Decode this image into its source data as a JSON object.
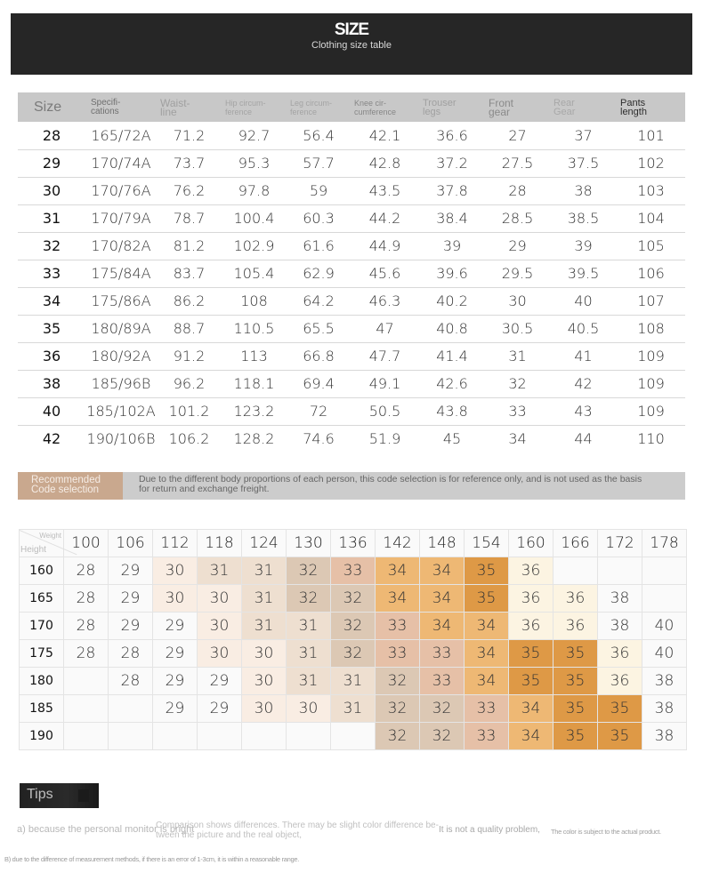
{
  "banner": {
    "title": "SIZE",
    "subtitle": "Clothing size table"
  },
  "size_table": {
    "headers": [
      {
        "line1": "Size",
        "line2": ""
      },
      {
        "line1": "Specifi-",
        "line2": "cations"
      },
      {
        "line1": "Waist-",
        "line2": "line"
      },
      {
        "line1": "Hip circum-",
        "line2": "ference"
      },
      {
        "line1": "Leg circum-",
        "line2": "ference"
      },
      {
        "line1": "Knee cir-",
        "line2": "cumference"
      },
      {
        "line1": "Trouser",
        "line2": "legs"
      },
      {
        "line1": "Front",
        "line2": "gear"
      },
      {
        "line1": "Rear",
        "line2": "Gear"
      },
      {
        "line1": "Pants",
        "line2": "length"
      }
    ],
    "rows": [
      [
        "28",
        "165/72A",
        "71.2",
        "92.7",
        "56.4",
        "42.1",
        "36.6",
        "27",
        "37",
        "101"
      ],
      [
        "29",
        "170/74A",
        "73.7",
        "95.3",
        "57.7",
        "42.8",
        "37.2",
        "27.5",
        "37.5",
        "102"
      ],
      [
        "30",
        "170/76A",
        "76.2",
        "97.8",
        "59",
        "43.5",
        "37.8",
        "28",
        "38",
        "103"
      ],
      [
        "31",
        "170/79A",
        "78.7",
        "100.4",
        "60.3",
        "44.2",
        "38.4",
        "28.5",
        "38.5",
        "104"
      ],
      [
        "32",
        "170/82A",
        "81.2",
        "102.9",
        "61.6",
        "44.9",
        "39",
        "29",
        "39",
        "105"
      ],
      [
        "33",
        "175/84A",
        "83.7",
        "105.4",
        "62.9",
        "45.6",
        "39.6",
        "29.5",
        "39.5",
        "106"
      ],
      [
        "34",
        "175/86A",
        "86.2",
        "108",
        "64.2",
        "46.3",
        "40.2",
        "30",
        "40",
        "107"
      ],
      [
        "35",
        "180/89A",
        "88.7",
        "110.5",
        "65.5",
        "47",
        "40.8",
        "30.5",
        "40.5",
        "108"
      ],
      [
        "36",
        "180/92A",
        "91.2",
        "113",
        "66.8",
        "47.7",
        "41.4",
        "31",
        "41",
        "109"
      ],
      [
        "38",
        "185/96B",
        "96.2",
        "118.1",
        "69.4",
        "49.1",
        "42.6",
        "32",
        "42",
        "109"
      ],
      [
        "40",
        "185/102A",
        "101.2",
        "123.2",
        "72",
        "50.5",
        "43.8",
        "33",
        "43",
        "109"
      ],
      [
        "42",
        "190/106B",
        "106.2",
        "128.2",
        "74.6",
        "51.9",
        "45",
        "34",
        "44",
        "110"
      ]
    ]
  },
  "recommendation": {
    "label_line1": "Recommended",
    "label_line2": "Code selection",
    "note_line1": "Due to the different body proportions of each person, this code selection is for reference only, and is not used as the basis",
    "note_line2": "for return and exchange freight."
  },
  "rec_grid": {
    "corner_weight": "Weight",
    "corner_height": "Height",
    "weights": [
      "100",
      "106",
      "112",
      "118",
      "124",
      "130",
      "136",
      "142",
      "148",
      "154",
      "160",
      "166",
      "172",
      "178"
    ],
    "rows": [
      {
        "height": "160",
        "values": [
          "28",
          "29",
          "30",
          "31",
          "31",
          "32",
          "33",
          "34",
          "34",
          "35",
          "36",
          "",
          "",
          ""
        ]
      },
      {
        "height": "165",
        "values": [
          "28",
          "29",
          "30",
          "30",
          "31",
          "32",
          "32",
          "34",
          "34",
          "35",
          "36",
          "36",
          "38",
          ""
        ]
      },
      {
        "height": "170",
        "values": [
          "28",
          "29",
          "29",
          "30",
          "31",
          "31",
          "32",
          "33",
          "34",
          "34",
          "36",
          "36",
          "38",
          "40"
        ]
      },
      {
        "height": "175",
        "values": [
          "28",
          "28",
          "29",
          "30",
          "30",
          "31",
          "32",
          "33",
          "33",
          "34",
          "35",
          "35",
          "36",
          "40"
        ]
      },
      {
        "height": "180",
        "values": [
          "",
          "28",
          "29",
          "29",
          "30",
          "31",
          "31",
          "32",
          "33",
          "34",
          "35",
          "35",
          "36",
          "38"
        ]
      },
      {
        "height": "185",
        "values": [
          "",
          "",
          "29",
          "29",
          "30",
          "30",
          "31",
          "32",
          "32",
          "33",
          "34",
          "35",
          "35",
          "38"
        ]
      },
      {
        "height": "190",
        "values": [
          "",
          "",
          "",
          "",
          "",
          "",
          "",
          "32",
          "32",
          "33",
          "34",
          "35",
          "35",
          "38"
        ]
      }
    ],
    "colors": {
      "28": "#fafafa",
      "29": "#fafafa",
      "30": "#f9ede3",
      "31": "#eedfd0",
      "32": "#dcc8b4",
      "33": "#e6c0a7",
      "34": "#eeb874",
      "35": "#de9946",
      "36": "#fcf4e2",
      "38": "#fafafa",
      "40": "#fafafa"
    }
  },
  "tips": {
    "title": "Tips",
    "a_part1": "a) because the personal monitor is bright",
    "a_part2_line1": "Comparison shows differences. There may be slight color difference be-",
    "a_part2_line2": "tween the picture and the real object,",
    "a_part3": "It is not a quality problem,",
    "a_part4": "The color is subject to the actual product.",
    "b": "B) due to the difference of measurement methods, if there is an error of 1-3cm, it is within a reasonable range."
  }
}
